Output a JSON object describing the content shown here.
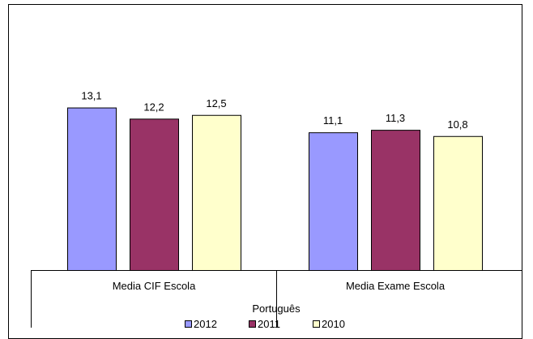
{
  "chart_data": {
    "type": "bar",
    "categories": [
      "Media CIF Escola",
      "Media Exame Escola"
    ],
    "series": [
      {
        "name": "2012",
        "values": [
          13.1,
          11.1
        ],
        "labels": [
          "13,1",
          "11,1"
        ],
        "color": "#9999FF"
      },
      {
        "name": "2011",
        "values": [
          12.2,
          11.3
        ],
        "labels": [
          "12,2",
          "11,3"
        ],
        "color": "#993366"
      },
      {
        "name": "2010",
        "values": [
          12.5,
          10.8
        ],
        "labels": [
          "12,5",
          "10,8"
        ],
        "color": "#FFFFCC"
      }
    ],
    "xlabel": "Português",
    "ylim": [
      0,
      20
    ],
    "legend_position": "bottom",
    "grid": false
  }
}
